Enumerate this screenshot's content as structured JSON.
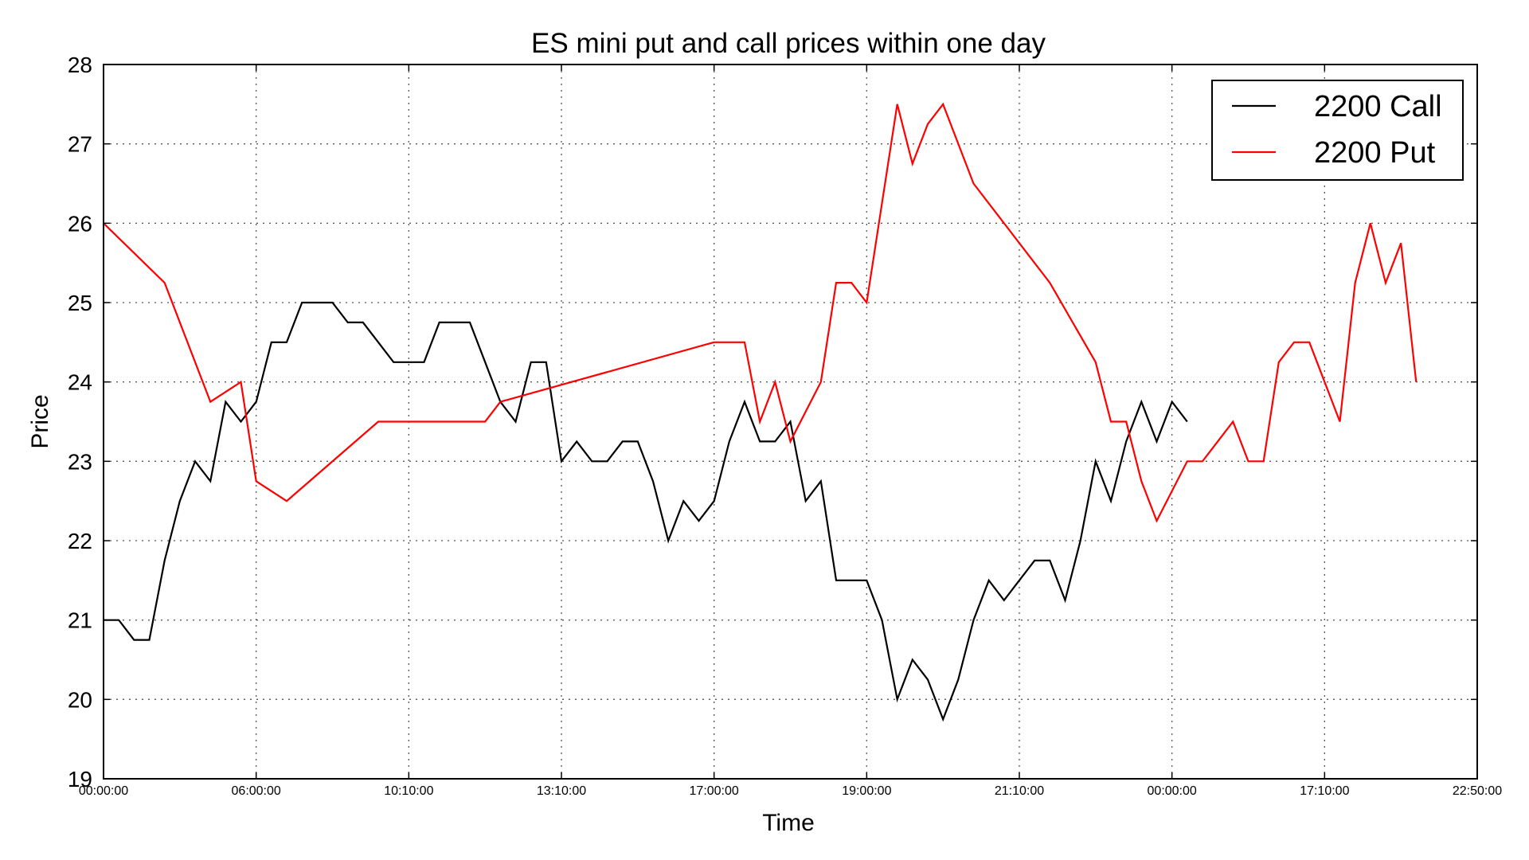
{
  "chart_data": {
    "type": "line",
    "title": "ES mini put and call prices within one day",
    "xlabel": "Time",
    "ylabel": "Price",
    "ylim": [
      19,
      28
    ],
    "xlim": [
      0,
      90
    ],
    "yticks": [
      19,
      20,
      21,
      22,
      23,
      24,
      25,
      26,
      27,
      28
    ],
    "xticks": [
      {
        "x": 0,
        "label": "00:00:00"
      },
      {
        "x": 10,
        "label": "06:00:00"
      },
      {
        "x": 20,
        "label": "10:10:00"
      },
      {
        "x": 30,
        "label": "13:10:00"
      },
      {
        "x": 40,
        "label": "17:00:00"
      },
      {
        "x": 50,
        "label": "19:00:00"
      },
      {
        "x": 60,
        "label": "21:10:00"
      },
      {
        "x": 70,
        "label": "00:00:00"
      },
      {
        "x": 80,
        "label": "17:10:00"
      },
      {
        "x": 90,
        "label": "22:50:00"
      }
    ],
    "grid": true,
    "legend_position": "top-right",
    "series": [
      {
        "name": "2200 Call",
        "color": "#000000",
        "x": [
          0,
          1,
          2,
          3,
          4,
          5,
          6,
          7,
          8,
          9,
          10,
          11,
          12,
          13,
          14,
          15,
          16,
          17,
          18,
          19,
          20,
          21,
          22,
          23,
          24,
          25,
          26,
          27,
          28,
          29,
          30,
          31,
          32,
          33,
          34,
          35,
          36,
          37,
          38,
          39,
          40,
          41,
          42,
          43,
          44,
          45,
          46,
          47,
          48,
          49,
          50,
          51,
          52,
          53,
          54,
          55,
          56,
          57,
          58,
          59,
          60,
          61,
          62,
          63,
          64,
          65,
          66,
          67,
          68,
          69,
          70,
          71
        ],
        "values": [
          21.0,
          21.0,
          20.75,
          20.75,
          21.75,
          22.5,
          23.0,
          22.75,
          23.75,
          23.5,
          23.75,
          24.5,
          24.5,
          25.0,
          25.0,
          25.0,
          24.75,
          24.75,
          24.5,
          24.25,
          24.25,
          24.25,
          24.75,
          24.75,
          24.75,
          24.25,
          23.75,
          23.5,
          24.25,
          24.25,
          23.0,
          23.25,
          23.0,
          23.0,
          23.25,
          23.25,
          22.75,
          22.0,
          22.5,
          22.25,
          22.5,
          23.25,
          23.75,
          23.25,
          23.25,
          23.5,
          22.5,
          22.75,
          21.5,
          21.5,
          21.5,
          21.0,
          20.0,
          20.5,
          20.25,
          19.75,
          20.25,
          21.0,
          21.5,
          21.25,
          21.5,
          21.75,
          21.75,
          21.25,
          22.0,
          23.0,
          22.5,
          23.25,
          23.75,
          23.25,
          23.75,
          23.5
        ]
      },
      {
        "name": "2200 Put",
        "color": "#ff0000",
        "x": [
          0,
          4,
          7,
          9,
          10,
          12,
          18,
          25,
          26,
          40,
          42,
          43,
          44,
          45,
          47,
          48,
          49,
          50,
          52,
          53,
          54,
          55,
          57,
          62,
          65,
          66,
          67,
          68,
          69,
          71,
          72,
          74,
          75,
          76,
          77,
          78,
          79,
          81,
          82,
          83,
          84,
          85,
          86
        ],
        "values": [
          26.0,
          25.25,
          23.75,
          24.0,
          22.75,
          22.5,
          23.5,
          23.5,
          23.75,
          24.5,
          24.5,
          23.5,
          24.0,
          23.25,
          24.0,
          25.25,
          25.25,
          25.0,
          27.5,
          26.75,
          27.25,
          27.5,
          26.5,
          25.25,
          24.25,
          23.5,
          23.5,
          22.75,
          22.25,
          23.0,
          23.0,
          23.5,
          23.0,
          23.0,
          24.25,
          24.5,
          24.5,
          23.5,
          25.25,
          26.0,
          25.25,
          25.75,
          24.0
        ]
      }
    ]
  }
}
